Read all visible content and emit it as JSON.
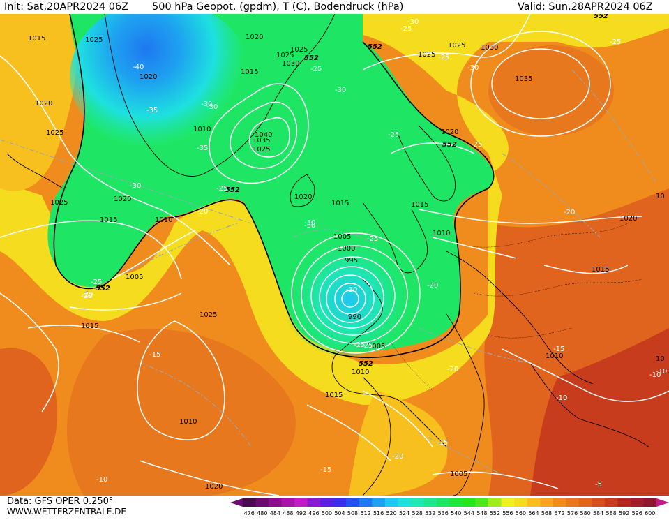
{
  "header": {
    "init": "Init: Sat,20APR2024 06Z",
    "title": "500 hPa Geopot. (gpdm), T (C), Bodendruck (hPa)",
    "valid": "Valid: Sun,28APR2024 06Z"
  },
  "footer": {
    "data_source": "Data: GFS OPER 0.250°",
    "website": "WWW.WETTERZENTRALE.DE"
  },
  "legend": {
    "values": [
      "476",
      "480",
      "484",
      "488",
      "492",
      "496",
      "500",
      "504",
      "508",
      "512",
      "516",
      "520",
      "524",
      "528",
      "532",
      "536",
      "540",
      "544",
      "548",
      "552",
      "556",
      "560",
      "564",
      "568",
      "572",
      "576",
      "580",
      "584",
      "588",
      "592",
      "596",
      "600"
    ],
    "colors": [
      "#4a0a4f",
      "#6a0c70",
      "#8c0e8c",
      "#a814a8",
      "#c21cc4",
      "#8a1bd1",
      "#5a1fe0",
      "#3a2cf0",
      "#2450f0",
      "#1e78f0",
      "#1ea2f0",
      "#1ec8f0",
      "#1ee0e0",
      "#1ee6b4",
      "#1ee68c",
      "#1ee664",
      "#1ee63c",
      "#28e61e",
      "#50e61e",
      "#a0ec1e",
      "#f0f01e",
      "#f6dc1e",
      "#f8c01e",
      "#f8a41e",
      "#f08c1e",
      "#e8781e",
      "#e0641e",
      "#d4501e",
      "#c83c1e",
      "#b42820",
      "#a01e2a",
      "#8c1830"
    ],
    "left_arrow_color": "#6a0c70",
    "right_arrow_color": "#c21c8c"
  },
  "pressure_labels": [
    "1015",
    "1025",
    "1020",
    "1025",
    "1020",
    "1025",
    "1025",
    "1030",
    "552",
    "1020",
    "1015",
    "1010",
    "1040",
    "1035",
    "1025",
    "1020",
    "1015",
    "1005",
    "1000",
    "995",
    "990",
    "1005",
    "1010",
    "1015",
    "1020",
    "1010",
    "1015",
    "1025",
    "1035",
    "1030",
    "1025",
    "1020",
    "1015",
    "1010",
    "1010",
    "1005",
    "1025",
    "1020",
    "1015",
    "1005",
    "1025",
    "1015",
    "1010",
    "1020",
    "10",
    "10"
  ],
  "height_labels": [
    "552",
    "552",
    "552",
    "552",
    "552",
    "552",
    "552",
    "552"
  ],
  "temperature_labels": [
    "-40",
    "-35",
    "-30",
    "-35",
    "-30",
    "-20",
    "-25",
    "-30",
    "-20",
    "-25",
    "-25",
    "-25",
    "-30",
    "-30",
    "-25",
    "-25",
    "-30",
    "-25",
    "-25",
    "-30",
    "-20",
    "-25",
    "-25",
    "-20",
    "-15",
    "-20",
    "-15",
    "-10",
    "-10",
    "-15",
    "-20",
    "-15",
    "-10",
    "-10",
    "-5",
    "-25",
    "-20",
    "-30",
    "-30"
  ]
}
